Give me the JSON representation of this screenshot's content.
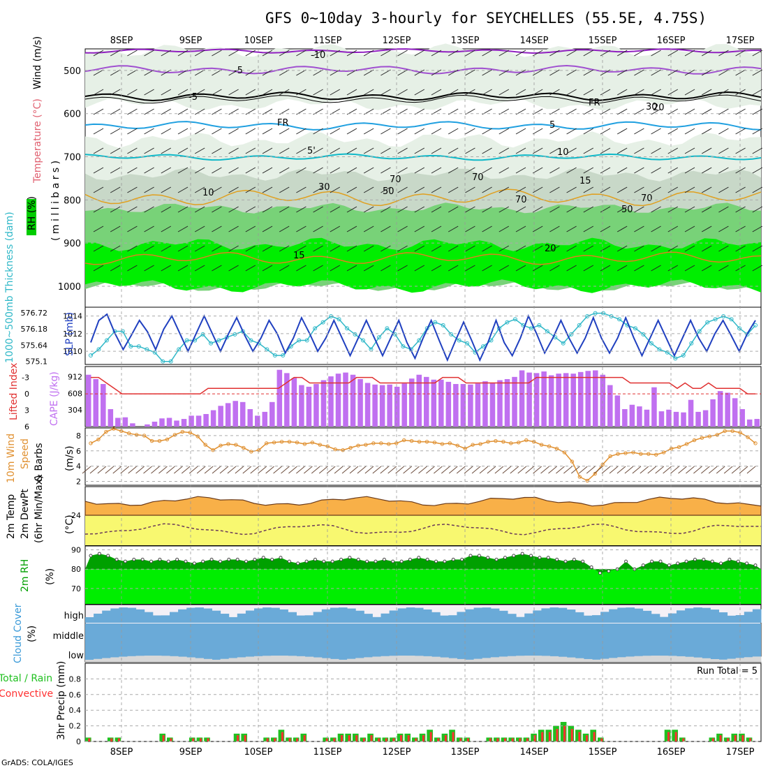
{
  "title": "GFS 0~10day 3-hourly for SEYCHELLES (55.5E, 4.75S)",
  "credit": "GrADS: COLA/IGES",
  "date_labels": [
    "8SEP",
    "9SEP",
    "10SEP",
    "11SEP",
    "12SEP",
    "13SEP",
    "14SEP",
    "15SEP",
    "16SEP",
    "17SEP"
  ],
  "colors": {
    "rh_light": "#e6f0e6",
    "rh_mid": "#c8d8c8",
    "rh_green": "#78d278",
    "rh_bright": "#00ee00",
    "t_neg10": "#9020c0",
    "t_neg5": "#a050d0",
    "t_0": "#000000",
    "t_5": "#20a0e0",
    "t_10": "#10b8c8",
    "t_15": "#e0a020",
    "t_20": "#e08020",
    "slp": "#2040c0",
    "thick": "#30b8c8",
    "li": "#e03030",
    "cape": "#c070f0",
    "wind": "#e09030",
    "temp_fill": "#f8b048",
    "dew_fill": "#f8f870",
    "rh2m_dark": "#00a000",
    "rh2m_bright": "#00ee00",
    "cloud": "#6aaad8",
    "cloud_low": "#d8d8d8",
    "precip_total": "#20c020",
    "precip_conv": "#ff3030"
  },
  "panels": {
    "upper": {
      "ylabel_wind": "Wind (m/s)",
      "ylabel_temp": "Temperature (°C)",
      "ylabel_rh": "RH (%)",
      "ylabel_units": "( m i l l i b a r s )",
      "yticks": [
        "500",
        "600",
        "700",
        "800",
        "900",
        "1000"
      ],
      "isotherm_labels": [
        "-10",
        "-5",
        "-5",
        "FR",
        "FR",
        "5",
        "5'",
        "10",
        "10",
        "15",
        "15",
        "20",
        "20",
        "30",
        "50",
        "70",
        "70",
        "50",
        "70",
        "70",
        "30"
      ]
    },
    "slp": {
      "ylabel_thick": "1000~500mb Thickness (dam)",
      "ylabel_slp": "SLP (mb)",
      "left_ticks": [
        "576.72",
        "576.18",
        "575.64",
        "575.1"
      ],
      "right_ticks": [
        "1014",
        "1012",
        "1010"
      ]
    },
    "cape": {
      "ylabel_li": "Lifted Index",
      "ylabel_cape": "CAPE (J/kg)",
      "li_ticks": [
        "-3",
        "0",
        "3",
        "6"
      ],
      "cape_ticks": [
        "912",
        "608",
        "304"
      ]
    },
    "wind10": {
      "ylabel1": "10m Wind",
      "ylabel2": "Speed",
      "ylabel3": "& Barbs",
      "units": "(m/s)",
      "yticks": [
        "8",
        "6",
        "4",
        "2"
      ]
    },
    "temp2m": {
      "ylabel1": "2m Temp",
      "ylabel2": "2m DewPt",
      "ylabel3": "(6hr Min/Max)",
      "units": "(°C)",
      "yticks": [
        "24"
      ]
    },
    "rh2m": {
      "ylabel": "2m RH",
      "units": "(%)",
      "yticks": [
        "90",
        "80",
        "70"
      ]
    },
    "cloud": {
      "ylabel": "Cloud Cover",
      "units": "(%)",
      "levels": [
        "high",
        "middle",
        "low"
      ]
    },
    "precip": {
      "ylabel_total": "Total / Rain",
      "ylabel_conv": "Convective",
      "ylabel_units": "3hr Precip (mm)",
      "yticks": [
        "0.8",
        "0.6",
        "0.4",
        "0.2",
        "0"
      ],
      "run_total": "Run Total = 5"
    }
  },
  "chart_data": [
    {
      "type": "line",
      "name": "SLP (mb)",
      "x_step_hours": 3,
      "ylim": [
        1008.5,
        1015
      ],
      "values": [
        1011,
        1013.5,
        1014.2,
        1012,
        1010.2,
        1011.8,
        1013.5,
        1012.2,
        1010.2,
        1012.5,
        1014,
        1012,
        1010,
        1012,
        1014,
        1012,
        1010,
        1012,
        1013.8,
        1011.8,
        1010,
        1011.5,
        1013.5,
        1012,
        1009.8,
        1011.5,
        1013.8,
        1012,
        1010,
        1011.5,
        1013.5,
        1011.5,
        1009.5,
        1011.5,
        1013.5,
        1011.5,
        1009.5,
        1011.5,
        1013.5,
        1011,
        1009.2,
        1011.5,
        1013.5,
        1011.2,
        1009,
        1011.2,
        1013.3,
        1011.2,
        1009,
        1011,
        1013.5,
        1011,
        1009.5,
        1011.5,
        1014,
        1012,
        1009.8,
        1011.5,
        1013.5,
        1011.5,
        1009.8,
        1011.5,
        1013.8,
        1011.5,
        1009.8,
        1011.5,
        1013.8,
        1011.5,
        1009.5,
        1011.5,
        1013.5,
        1011.5,
        1009.5,
        1011.5,
        1013.5,
        1011.5,
        1010,
        1012,
        1013.5,
        1011.8,
        1010,
        1012,
        1013.5
      ]
    },
    {
      "type": "line",
      "name": "1000-500mb Thickness (dam)",
      "ylim": [
        575.0,
        576.9
      ],
      "values": [
        575.3,
        575.5,
        575.8,
        576.1,
        576.1,
        575.6,
        575.6,
        575.5,
        575.4,
        575.1,
        575.1,
        575.5,
        575.8,
        575.8,
        576.0,
        575.7,
        575.8,
        575.9,
        576.0,
        576.1,
        575.8,
        575.7,
        575.5,
        575.3,
        575.3,
        575.6,
        575.8,
        575.8,
        576.2,
        576.4,
        576.6,
        576.5,
        576.2,
        576.0,
        575.8,
        575.5,
        575.9,
        576.2,
        576.0,
        575.6,
        575.5,
        575.8,
        576.2,
        576.4,
        576.3,
        576.0,
        575.8,
        575.7,
        575.4,
        575.6,
        575.8,
        576.2,
        576.4,
        576.5,
        576.3,
        576.2,
        576.3,
        576.1,
        575.9,
        575.7,
        576.0,
        576.3,
        576.6,
        576.7,
        576.7,
        576.6,
        576.5,
        576.3,
        576.2,
        576.0,
        575.7,
        575.5,
        575.4,
        575.2,
        575.3,
        575.7,
        576.1,
        576.4,
        576.5,
        576.6,
        576.5,
        576.2,
        576.0,
        576.3
      ]
    },
    {
      "type": "bar",
      "name": "CAPE (J/kg)",
      "ylim": [
        0,
        1100
      ],
      "values": [
        950,
        870,
        780,
        320,
        160,
        170,
        60,
        0,
        40,
        90,
        150,
        160,
        110,
        140,
        200,
        200,
        230,
        300,
        380,
        430,
        470,
        450,
        320,
        200,
        270,
        450,
        1040,
        980,
        890,
        760,
        730,
        780,
        850,
        920,
        970,
        990,
        950,
        870,
        800,
        770,
        760,
        770,
        730,
        790,
        880,
        950,
        910,
        860,
        860,
        820,
        780,
        780,
        770,
        790,
        830,
        800,
        850,
        870,
        910,
        1030,
        990,
        980,
        1010,
        940,
        970,
        980,
        970,
        1000,
        1020,
        1030,
        950,
        760,
        570,
        320,
        400,
        370,
        310,
        720,
        280,
        310,
        270,
        260,
        490,
        270,
        300,
        500,
        650,
        620,
        520,
        320,
        130,
        140
      ]
    },
    {
      "type": "line",
      "name": "Lifted Index",
      "ylim": [
        6,
        -5
      ],
      "values": [
        -3,
        -3,
        -2,
        -1,
        0,
        0,
        0,
        0,
        0,
        0,
        0,
        0,
        0,
        0,
        0,
        -1,
        -1,
        -1,
        -1,
        -1,
        -1,
        -1,
        -1,
        -1,
        -1,
        -2,
        -3,
        -3,
        -2,
        -2,
        -2,
        -2,
        -2,
        -2,
        -3,
        -3,
        -3,
        -2,
        -2,
        -2,
        -2,
        -2,
        -2,
        -2,
        -2,
        -3,
        -3,
        -3,
        -2,
        -2,
        -2,
        -2,
        -2,
        -2,
        -2,
        -2,
        -2,
        -3,
        -3,
        -3,
        -3,
        -3,
        -3,
        -3,
        -3,
        -3,
        -3,
        -3,
        -3,
        -2,
        -2,
        -2,
        -2,
        -2,
        -2,
        -1,
        -2,
        -1,
        -1,
        -2,
        -1,
        -1,
        -1,
        -1,
        0,
        0
      ]
    },
    {
      "type": "line",
      "name": "10m Wind Speed (m/s)",
      "ylim": [
        1.5,
        9
      ],
      "values": [
        7,
        7.5,
        8.5,
        8.9,
        8.6,
        8.3,
        8.1,
        8,
        7.3,
        7.3,
        7.5,
        8.1,
        8.5,
        8.4,
        7.9,
        6.8,
        6.1,
        6.7,
        6.9,
        6.8,
        6.4,
        5.9,
        6.1,
        7,
        7.1,
        7.2,
        7.2,
        7.1,
        6.9,
        7.1,
        6.8,
        6.6,
        6.2,
        6.1,
        6.4,
        6.7,
        6.8,
        7,
        7,
        6.9,
        7,
        7.4,
        7.3,
        7.2,
        7.2,
        7.1,
        6.9,
        7,
        6.7,
        6.3,
        6.8,
        6.9,
        7.2,
        7.3,
        7.2,
        7,
        7.1,
        7.4,
        7.2,
        6.8,
        6.6,
        6.3,
        5.8,
        4.6,
        2.6,
        2.1,
        3,
        4.2,
        5.3,
        5.6,
        5.7,
        5.8,
        5.6,
        5.6,
        5.5,
        5.8,
        6.3,
        6.5,
        6.9,
        7.4,
        7.7,
        7.9,
        8.1,
        8.6,
        8.6,
        8.4,
        7.8,
        7
      ]
    },
    {
      "type": "line",
      "name": "2m RH (%)",
      "ylim": [
        62,
        92
      ],
      "values": [
        87,
        88,
        87,
        85,
        84,
        85,
        85,
        84,
        85,
        84,
        85,
        84,
        83,
        84,
        85,
        84,
        85,
        85,
        84,
        85,
        86,
        85,
        86,
        84,
        83,
        84,
        85,
        84,
        84,
        85,
        86,
        85,
        84,
        84,
        85,
        84,
        84,
        85,
        86,
        85,
        84,
        84,
        85,
        85,
        87,
        87,
        86,
        85,
        86,
        87,
        88,
        87,
        86,
        86,
        85,
        84,
        85,
        84,
        81,
        78,
        79,
        80,
        84,
        80,
        82,
        84,
        84,
        82,
        83,
        84,
        85,
        85,
        84,
        83,
        85,
        84,
        83,
        82
      ]
    },
    {
      "type": "bar",
      "name": "3hr Precip (mm)",
      "ylim": [
        0,
        1.0
      ],
      "values": [
        0.05,
        0,
        0,
        0.05,
        0.05,
        0,
        0,
        0,
        0,
        0,
        0.1,
        0.05,
        0,
        0,
        0.05,
        0.05,
        0.05,
        0,
        0,
        0,
        0.1,
        0.1,
        0,
        0,
        0.05,
        0.05,
        0.15,
        0.05,
        0.05,
        0.1,
        0,
        0,
        0.05,
        0.05,
        0.1,
        0.1,
        0.1,
        0.05,
        0.1,
        0.05,
        0.05,
        0.05,
        0.1,
        0.1,
        0.05,
        0.1,
        0.15,
        0.05,
        0.1,
        0.15,
        0.05,
        0.05,
        0,
        0,
        0.05,
        0.05,
        0.05,
        0.05,
        0.05,
        0.05,
        0.1,
        0.15,
        0.15,
        0.2,
        0.25,
        0.2,
        0.15,
        0.1,
        0.15,
        0.05,
        0,
        0,
        0,
        0,
        0,
        0,
        0,
        0,
        0.15,
        0.15,
        0.05,
        0,
        0,
        0,
        0.05,
        0.1,
        0.05,
        0.1,
        0.1,
        0.05,
        0
      ]
    }
  ]
}
